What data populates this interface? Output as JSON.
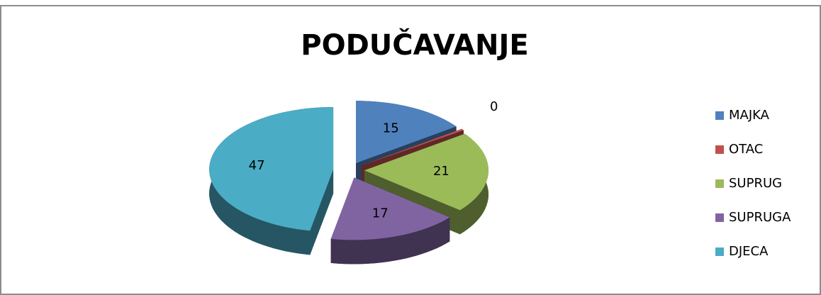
{
  "chart_data": {
    "type": "pie3d",
    "title": "PODUČAVANJE",
    "categories": [
      "MAJKA",
      "OTAC",
      "SUPRUG",
      "SUPRUGA",
      "DJECA"
    ],
    "values": [
      15,
      0,
      21,
      17,
      47
    ],
    "colors": [
      "#4f81bd",
      "#c0504d",
      "#9bbb59",
      "#8064a2",
      "#4bacc6"
    ],
    "legend": "right"
  }
}
